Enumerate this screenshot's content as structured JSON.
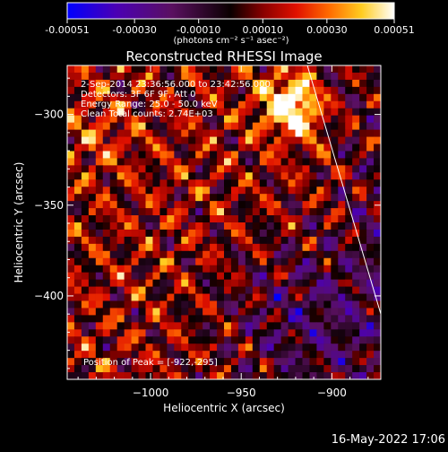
{
  "colorbar": {
    "ticks": [
      "-0.00051",
      "-0.00030",
      "-0.00010",
      "0.00010",
      "0.00030",
      "0.00051"
    ],
    "unit": "(photons cm⁻² s⁻¹ asec⁻²)",
    "min": -0.00051,
    "max": 0.00051
  },
  "chart_data": {
    "type": "heatmap",
    "title": "Reconstructed RHESSI Image",
    "xlabel": "Heliocentric X (arcsec)",
    "ylabel": "Heliocentric Y (arcsec)",
    "xlim": [
      -1046,
      -873
    ],
    "ylim": [
      -446,
      -273
    ],
    "x_ticks": [
      {
        "value": -1000,
        "label": "−1000"
      },
      {
        "value": -950,
        "label": "−950"
      },
      {
        "value": -900,
        "label": "−900"
      }
    ],
    "y_ticks": [
      {
        "value": -300,
        "label": "−300"
      },
      {
        "value": -350,
        "label": "−350"
      },
      {
        "value": -400,
        "label": "−400"
      }
    ],
    "annotations": [
      "2-Sep-2014 23:36:56.000 to 23:42:56.000",
      "Detectors: 3F 6F 9F, Att 0",
      "Energy Range: 25.0 - 50.0 keV",
      "Clean     Total counts: 2.74E+03"
    ],
    "peak_label": "Position of Peak = [-922,-295]",
    "peak": [
      -922,
      -295
    ],
    "limb_line": [
      [
        -915,
        -268
      ],
      [
        -873,
        -410
      ]
    ]
  },
  "footer": {
    "timestamp": "16-May-2022 17:06"
  }
}
